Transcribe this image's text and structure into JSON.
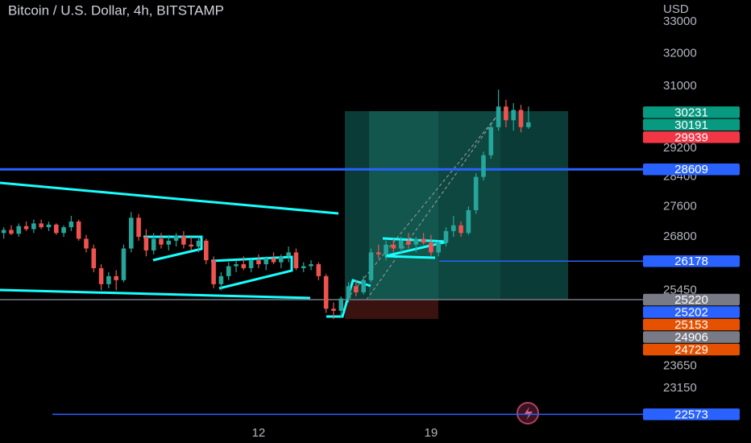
{
  "chart_data": {
    "type": "candlestick",
    "title": "Bitcoin / U.S. Dollar, 4h, BITSTAMP",
    "y_axis_label": "USD",
    "log_scale": true,
    "ylim": [
      22300,
      33700
    ],
    "yticks": [
      33000,
      32000,
      31000,
      29200,
      28400,
      27600,
      26800,
      25450,
      23650,
      23150
    ],
    "xlim": [
      -0.5,
      85.5
    ],
    "xticks": [
      {
        "value": 34,
        "label": "12"
      },
      {
        "value": 57,
        "label": "19"
      }
    ],
    "up_color": "#26a69a",
    "down_color": "#ef5350",
    "open": [
      26900,
      26980,
      26880,
      27080,
      27000,
      27150,
      27050,
      27120,
      26900,
      27050,
      27200,
      26750,
      26500,
      26000,
      25600,
      25800,
      25700,
      26500,
      27300,
      26800,
      26450,
      26750,
      26600,
      26700,
      26820,
      26600,
      26550,
      26700,
      26200,
      25600,
      25800,
      26050,
      26100,
      26000,
      26200,
      26100,
      26250,
      26150,
      26300,
      26400,
      26000,
      26050,
      26100,
      25800,
      25000,
      24950,
      25250,
      25550,
      25400,
      25700,
      26400,
      26350,
      26600,
      26500,
      26700,
      26600,
      26750,
      26650,
      26400,
      26650,
      26950,
      27100,
      26900,
      27500,
      28400,
      29000,
      29800,
      30400,
      30000,
      30300,
      29800
    ],
    "high": [
      27050,
      27100,
      27150,
      27200,
      27250,
      27250,
      27200,
      27150,
      27100,
      27350,
      27250,
      26850,
      26600,
      26100,
      25900,
      25950,
      26600,
      27450,
      27400,
      27000,
      26900,
      26900,
      26850,
      26900,
      26950,
      26800,
      26800,
      26750,
      26300,
      25900,
      26150,
      26200,
      26300,
      26250,
      26350,
      26300,
      26400,
      26350,
      26550,
      26500,
      26150,
      26200,
      26150,
      25850,
      25150,
      25300,
      25650,
      25700,
      25800,
      26500,
      26600,
      26700,
      26750,
      26800,
      26900,
      26800,
      26900,
      26850,
      26700,
      27050,
      27350,
      27200,
      27600,
      28500,
      29100,
      29900,
      30900,
      30600,
      30500,
      30450,
      30400
    ],
    "low": [
      26750,
      26850,
      26800,
      26950,
      26900,
      27000,
      26950,
      26850,
      26800,
      26950,
      26700,
      26400,
      25900,
      25450,
      25500,
      25450,
      25650,
      26400,
      26700,
      26300,
      26350,
      26500,
      26450,
      26550,
      26500,
      26450,
      26400,
      26100,
      25500,
      25450,
      25700,
      25900,
      25950,
      25900,
      26000,
      25950,
      26100,
      26000,
      26150,
      25950,
      25900,
      25950,
      25700,
      24900,
      24750,
      24800,
      25150,
      25300,
      25350,
      25650,
      26250,
      26200,
      26400,
      26400,
      26500,
      26400,
      26600,
      26300,
      26300,
      26550,
      26800,
      26800,
      26850,
      27400,
      28300,
      28900,
      29700,
      29800,
      29700,
      29650,
      29750
    ],
    "close": [
      26980,
      26880,
      27080,
      27000,
      27150,
      27050,
      27120,
      26900,
      27050,
      27200,
      26750,
      26500,
      26000,
      25600,
      25800,
      25700,
      26500,
      27300,
      26800,
      26450,
      26750,
      26600,
      26700,
      26820,
      26600,
      26550,
      26700,
      26200,
      25600,
      25800,
      26050,
      26100,
      26000,
      26200,
      26100,
      26250,
      26150,
      26300,
      26400,
      26000,
      26050,
      26100,
      25800,
      25000,
      24950,
      25250,
      25550,
      25400,
      25700,
      26400,
      26350,
      26600,
      26500,
      26700,
      26600,
      26750,
      26650,
      26400,
      26650,
      26950,
      27100,
      26900,
      27500,
      28400,
      29000,
      29800,
      30400,
      30000,
      30300,
      29800,
      29939
    ],
    "price_labels": [
      {
        "value": 30231,
        "color": "#089981"
      },
      {
        "value": 30191,
        "color": "#089981"
      },
      {
        "value": 29939,
        "color": "#f23645"
      },
      {
        "value": 28609,
        "color": "#2962ff"
      },
      {
        "value": 26178,
        "color": "#2962ff"
      },
      {
        "value": 25220,
        "color": "#787b86"
      },
      {
        "value": 25202,
        "color": "#2962ff"
      },
      {
        "value": 25153,
        "color": "#e65100"
      },
      {
        "value": 24906,
        "color": "#787b86"
      },
      {
        "value": 24729,
        "color": "#e65100"
      },
      {
        "value": 22573,
        "color": "#2962ff"
      }
    ]
  }
}
